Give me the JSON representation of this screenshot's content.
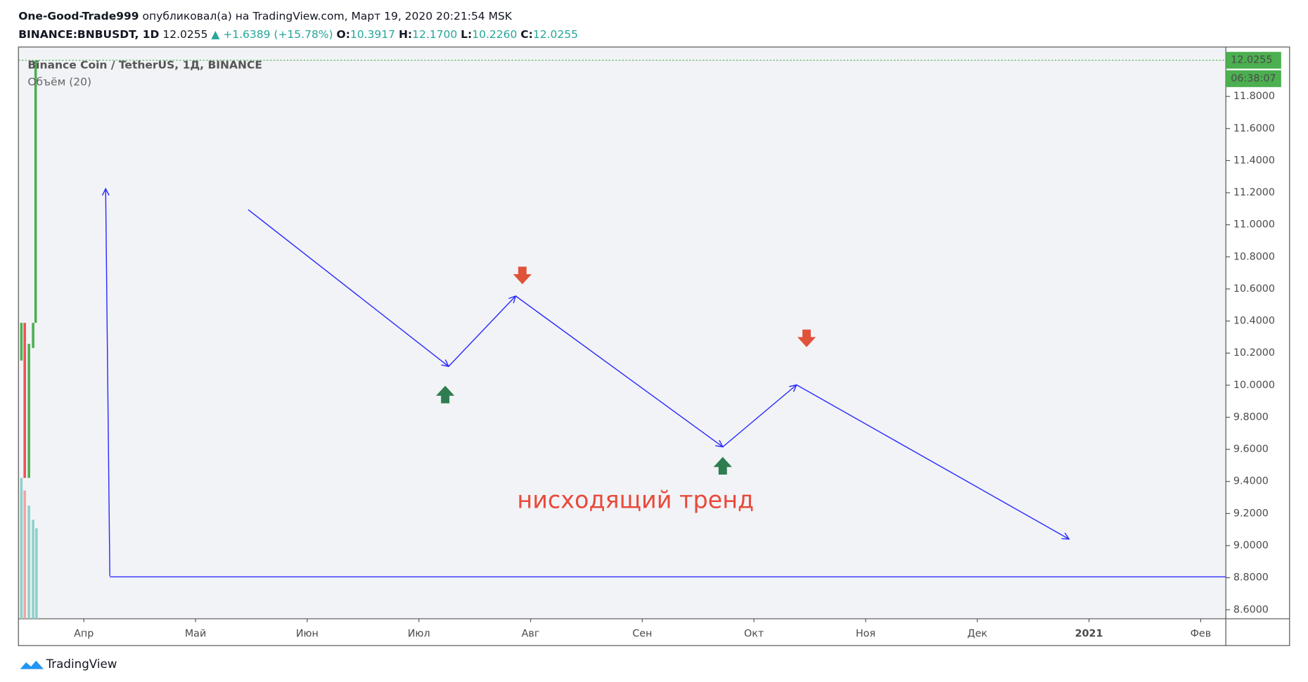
{
  "header": {
    "author": "One-Good-Trade999",
    "published": "опубликовал(а) на TradingView.com, Март 19, 2020 20:21:54 MSK",
    "symbol": "BINANCE:BNBUSDT, 1D",
    "last": "12.0255",
    "change": "▲ +1.6389 (+15.78%)",
    "open_label": "O:",
    "open": "10.3917",
    "high_label": "H:",
    "high": "12.1700",
    "low_label": "L:",
    "low": "10.2260",
    "close_label": "C:",
    "close": "12.0255"
  },
  "chart_data": {
    "type": "candlestick",
    "legend_title": "Binance Coin / TetherUS, 1Д, BINANCE",
    "volume_label": "Объём (20)",
    "categories": [
      "Апр",
      "Май",
      "Июн",
      "Июл",
      "Авг",
      "Сен",
      "Окт",
      "Ноя",
      "Дек",
      "2021",
      "Фев"
    ],
    "ylim": [
      8.544,
      12.108
    ],
    "yticks": [
      {
        "value": 8.6,
        "label": "8.6000"
      },
      {
        "value": 8.8,
        "label": "8.8000"
      },
      {
        "value": 9.0,
        "label": "9.0000"
      },
      {
        "value": 9.2,
        "label": "9.2000"
      },
      {
        "value": 9.4,
        "label": "9.4000"
      },
      {
        "value": 9.6,
        "label": "9.6000"
      },
      {
        "value": 9.8,
        "label": "9.8000"
      },
      {
        "value": 10.0,
        "label": "10.0000"
      },
      {
        "value": 10.2,
        "label": "10.2000"
      },
      {
        "value": 10.4,
        "label": "10.4000"
      },
      {
        "value": 10.6,
        "label": "10.6000"
      },
      {
        "value": 10.8,
        "label": "10.8000"
      },
      {
        "value": 11.0,
        "label": "11.0000"
      },
      {
        "value": 11.2,
        "label": "11.2000"
      },
      {
        "value": 11.4,
        "label": "11.4000"
      },
      {
        "value": 11.6,
        "label": "11.6000"
      },
      {
        "value": 11.8,
        "label": "11.8000"
      }
    ],
    "price_tag": 12.0255,
    "countdown": "06:38:07",
    "annotation": "нисходящий тренд",
    "line_color": "#2b2bff"
  },
  "footer": {
    "brand": "TradingView"
  }
}
